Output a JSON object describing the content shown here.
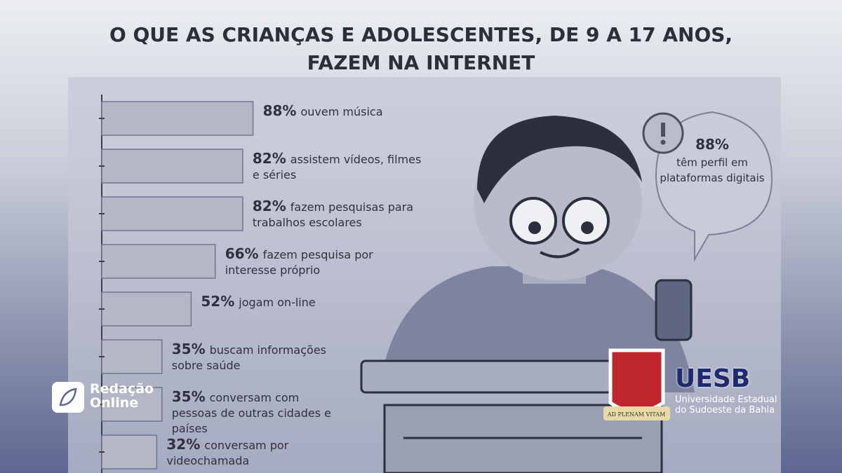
{
  "chart_data": {
    "type": "bar",
    "orientation": "horizontal",
    "title": "O QUE AS CRIANÇAS E ADOLESCENTES, DE 9 A 17 ANOS, FAZEM NA INTERNET",
    "categories": [
      "ouvem música",
      "assistem vídeos, filmes e séries",
      "fazem pesquisas para trabalhos escolares",
      "fazem pesquisa por interesse próprio",
      "jogam on-line",
      "buscam informações sobre saúde",
      "conversam com pessoas de outras cidades e países",
      "conversam por videochamada"
    ],
    "values": [
      88,
      82,
      82,
      66,
      52,
      35,
      35,
      32
    ],
    "value_labels": [
      "88%",
      "82%",
      "82%",
      "66%",
      "52%",
      "35%",
      "35%",
      "32%"
    ],
    "color": "#b4b8c6"
  },
  "callout": {
    "value": "88%",
    "text": "têm perfil em plataformas digitais"
  },
  "branding": {
    "left": "Redação Online",
    "right": "UESB",
    "right_subtitle": "Universidade Estadual do Sudoeste da Bahia",
    "motto": "AD PLENAM VITAM"
  }
}
